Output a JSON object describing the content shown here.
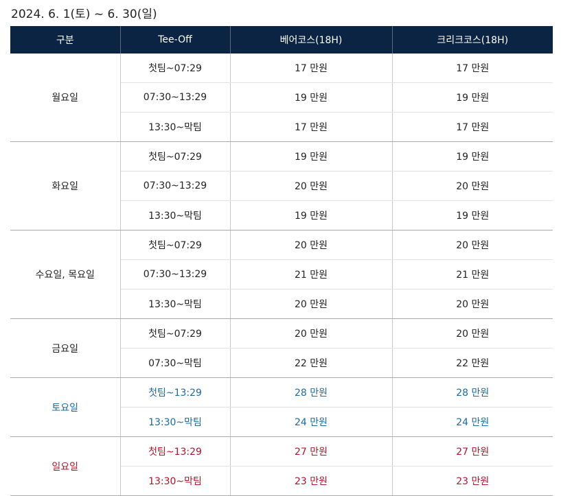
{
  "title": "2024. 6. 1(토) ~ 6. 30(일)",
  "headers": [
    "구분",
    "Tee-Off",
    "베어코스(18H)",
    "크리크코스(18H)"
  ],
  "groups": [
    {
      "day": "월요일",
      "style": "normal",
      "rows": [
        {
          "tee": "첫팀~07:29",
          "bear": "17 만원",
          "creek": "17 만원"
        },
        {
          "tee": "07:30~13:29",
          "bear": "19 만원",
          "creek": "19 만원"
        },
        {
          "tee": "13:30~막팀",
          "bear": "17 만원",
          "creek": "17 만원"
        }
      ]
    },
    {
      "day": "화요일",
      "style": "normal",
      "rows": [
        {
          "tee": "첫팀~07:29",
          "bear": "19 만원",
          "creek": "19 만원"
        },
        {
          "tee": "07:30~13:29",
          "bear": "20 만원",
          "creek": "20 만원"
        },
        {
          "tee": "13:30~막팀",
          "bear": "19 만원",
          "creek": "19 만원"
        }
      ]
    },
    {
      "day": "수요일, 목요일",
      "style": "normal",
      "rows": [
        {
          "tee": "첫팀~07:29",
          "bear": "20 만원",
          "creek": "20 만원"
        },
        {
          "tee": "07:30~13:29",
          "bear": "21 만원",
          "creek": "21 만원"
        },
        {
          "tee": "13:30~막팀",
          "bear": "20 만원",
          "creek": "20 만원"
        }
      ]
    },
    {
      "day": "금요일",
      "style": "normal",
      "rows": [
        {
          "tee": "첫팀~07:29",
          "bear": "20 만원",
          "creek": "20 만원"
        },
        {
          "tee": "07:30~막팀",
          "bear": "22 만원",
          "creek": "22 만원"
        }
      ]
    },
    {
      "day": "토요일",
      "style": "sat",
      "rows": [
        {
          "tee": "첫팀~13:29",
          "bear": "28 만원",
          "creek": "28 만원"
        },
        {
          "tee": "13:30~막팀",
          "bear": "24 만원",
          "creek": "24 만원"
        }
      ]
    },
    {
      "day": "일요일",
      "style": "sun",
      "rows": [
        {
          "tee": "첫팀~13:29",
          "bear": "27 만원",
          "creek": "27 만원"
        },
        {
          "tee": "13:30~막팀",
          "bear": "23 만원",
          "creek": "23 만원"
        }
      ]
    }
  ],
  "colors": {
    "header_bg": "#0b2444",
    "saturday": "#1a6aa0",
    "sunday": "#b0142a"
  }
}
